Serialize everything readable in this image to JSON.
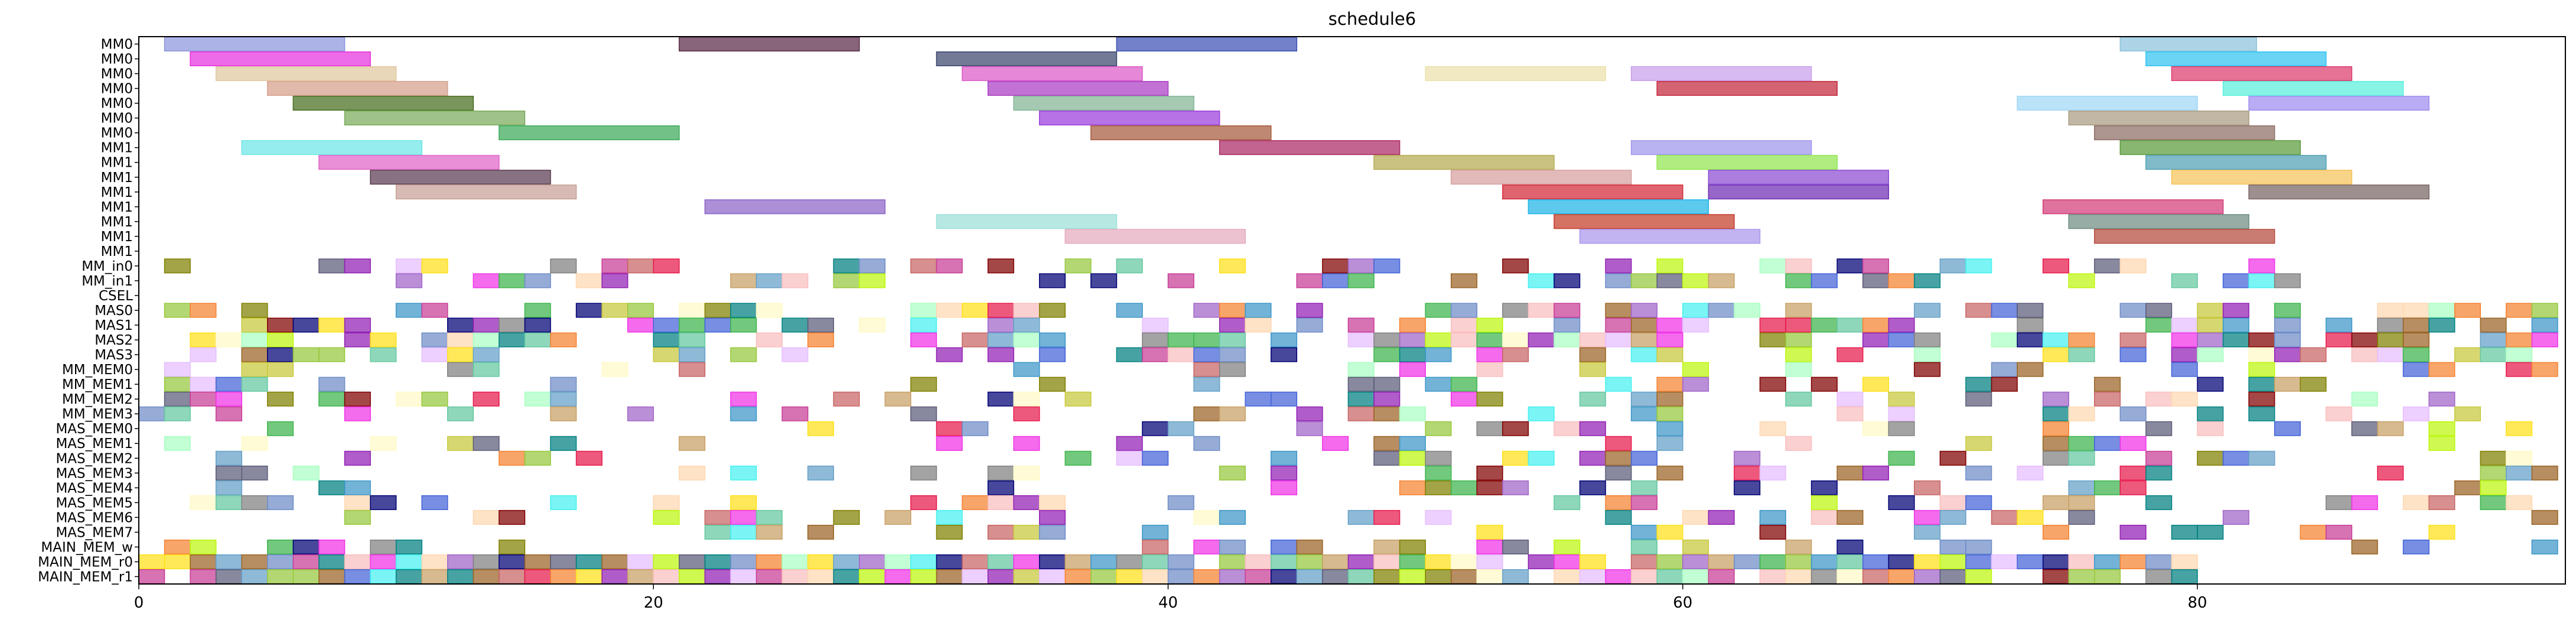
{
  "chart_data": {
    "type": "gantt",
    "title": "schedule6",
    "xlabel": "",
    "ylabel": "",
    "xlim": [
      0,
      94.3
    ],
    "x_ticks": [
      0,
      20,
      40,
      60,
      80
    ],
    "grid": false,
    "legend": "none",
    "resources": [
      "MM0",
      "MM0",
      "MM0",
      "MM0",
      "MM0",
      "MM0",
      "MM0",
      "MM1",
      "MM1",
      "MM1",
      "MM1",
      "MM1",
      "MM1",
      "MM1",
      "MM1",
      "MM_in0",
      "MM_in1",
      "CSEL",
      "MAS0",
      "MAS1",
      "MAS2",
      "MAS3",
      "MM_MEM0",
      "MM_MEM1",
      "MM_MEM2",
      "MM_MEM3",
      "MAS_MEM0",
      "MAS_MEM1",
      "MAS_MEM2",
      "MAS_MEM3",
      "MAS_MEM4",
      "MAS_MEM5",
      "MAS_MEM6",
      "MAS_MEM7",
      "MAIN_MEM_w",
      "MAIN_MEM_r0",
      "MAIN_MEM_r1"
    ],
    "long_tasks": [
      {
        "row": 0,
        "start": 1.0,
        "end": 8.0,
        "color": "#8c96dc"
      },
      {
        "row": 0,
        "start": 21.0,
        "end": 28.0,
        "color": "#5a2a46"
      },
      {
        "row": 0,
        "start": 38.0,
        "end": 45.0,
        "color": "#3c50b4"
      },
      {
        "row": 0,
        "start": 77.0,
        "end": 82.3,
        "color": "#8cc3dc"
      },
      {
        "row": 1,
        "start": 2.0,
        "end": 9.0,
        "color": "#e632dc"
      },
      {
        "row": 1,
        "start": 31.0,
        "end": 38.0,
        "color": "#3c466e"
      },
      {
        "row": 1,
        "start": 78.0,
        "end": 85.0,
        "color": "#32c3f0"
      },
      {
        "row": 2,
        "start": 3.0,
        "end": 10.0,
        "color": "#e1c8a0"
      },
      {
        "row": 2,
        "start": 32.0,
        "end": 39.0,
        "color": "#dc5ac8"
      },
      {
        "row": 2,
        "start": 50.0,
        "end": 57.0,
        "color": "#ebe1aa"
      },
      {
        "row": 2,
        "start": 58.0,
        "end": 65.0,
        "color": "#c8a0eb"
      },
      {
        "row": 2,
        "start": 79.0,
        "end": 86.0,
        "color": "#dc3c6e"
      },
      {
        "row": 3,
        "start": 5.0,
        "end": 12.0,
        "color": "#d7a08c"
      },
      {
        "row": 3,
        "start": 33.0,
        "end": 40.0,
        "color": "#aa3cc3"
      },
      {
        "row": 3,
        "start": 59.0,
        "end": 66.0,
        "color": "#c3283c"
      },
      {
        "row": 3,
        "start": 81.0,
        "end": 88.0,
        "color": "#5af0dc"
      },
      {
        "row": 4,
        "start": 6.0,
        "end": 13.0,
        "color": "#466e1e"
      },
      {
        "row": 4,
        "start": 34.0,
        "end": 41.0,
        "color": "#82b496"
      },
      {
        "row": 4,
        "start": 73.0,
        "end": 80.0,
        "color": "#a0d7f5"
      },
      {
        "row": 4,
        "start": 82.0,
        "end": 89.0,
        "color": "#a08cf0"
      },
      {
        "row": 5,
        "start": 8.0,
        "end": 15.0,
        "color": "#78aa5a"
      },
      {
        "row": 5,
        "start": 35.0,
        "end": 42.0,
        "color": "#9b3cdc"
      },
      {
        "row": 5,
        "start": 75.0,
        "end": 82.0,
        "color": "#aa9b82"
      },
      {
        "row": 6,
        "start": 14.0,
        "end": 21.0,
        "color": "#3caa5a"
      },
      {
        "row": 6,
        "start": 37.0,
        "end": 44.0,
        "color": "#a55a3c"
      },
      {
        "row": 6,
        "start": 76.0,
        "end": 83.0,
        "color": "#8c6e64"
      },
      {
        "row": 7,
        "start": 4.0,
        "end": 11.0,
        "color": "#6ee6e6"
      },
      {
        "row": 7,
        "start": 42.0,
        "end": 49.0,
        "color": "#aa2864"
      },
      {
        "row": 7,
        "start": 58.0,
        "end": 65.0,
        "color": "#a096eb"
      },
      {
        "row": 7,
        "start": 77.0,
        "end": 84.0,
        "color": "#5a9b3c"
      },
      {
        "row": 8,
        "start": 7.0,
        "end": 14.0,
        "color": "#e164c8"
      },
      {
        "row": 8,
        "start": 48.0,
        "end": 55.0,
        "color": "#b4aa50"
      },
      {
        "row": 8,
        "start": 59.0,
        "end": 66.0,
        "color": "#91e650"
      },
      {
        "row": 8,
        "start": 78.0,
        "end": 85.0,
        "color": "#50a0b4"
      },
      {
        "row": 9,
        "start": 9.0,
        "end": 16.0,
        "color": "#5a3c50"
      },
      {
        "row": 9,
        "start": 51.0,
        "end": 58.0,
        "color": "#d7a0a0"
      },
      {
        "row": 9,
        "start": 61.0,
        "end": 68.0,
        "color": "#8c4bd2"
      },
      {
        "row": 9,
        "start": 79.0,
        "end": 86.0,
        "color": "#f5c35a"
      },
      {
        "row": 10,
        "start": 10.0,
        "end": 17.0,
        "color": "#c8a096"
      },
      {
        "row": 10,
        "start": 53.0,
        "end": 60.0,
        "color": "#d22837"
      },
      {
        "row": 10,
        "start": 61.0,
        "end": 68.0,
        "color": "#6e2db4"
      },
      {
        "row": 10,
        "start": 82.0,
        "end": 89.0,
        "color": "#786464"
      },
      {
        "row": 11,
        "start": 22.0,
        "end": 29.0,
        "color": "#8c64c8"
      },
      {
        "row": 11,
        "start": 54.0,
        "end": 61.0,
        "color": "#1eb4e6"
      },
      {
        "row": 11,
        "start": 74.0,
        "end": 81.0,
        "color": "#d23c78"
      },
      {
        "row": 12,
        "start": 31.0,
        "end": 38.0,
        "color": "#9be1d7"
      },
      {
        "row": 12,
        "start": 55.0,
        "end": 62.0,
        "color": "#c33c28"
      },
      {
        "row": 12,
        "start": 75.0,
        "end": 82.0,
        "color": "#6e8c82"
      },
      {
        "row": 13,
        "start": 36.0,
        "end": 43.0,
        "color": "#e6aabe"
      },
      {
        "row": 13,
        "start": 56.0,
        "end": 63.0,
        "color": "#aa96eb"
      },
      {
        "row": 13,
        "start": 76.0,
        "end": 83.0,
        "color": "#b44b3c"
      }
    ]
  }
}
